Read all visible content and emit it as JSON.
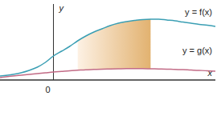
{
  "chart_data": {
    "type": "line",
    "x_label": "x",
    "y_label": "y",
    "x": [
      -3.3,
      -2.5,
      -2,
      -1.5,
      -1,
      -0.5,
      0,
      0.5,
      1,
      1.5,
      2,
      2.5,
      3,
      3.5,
      4,
      4.5,
      5,
      5.5,
      6,
      6.5,
      7,
      7.5,
      8,
      8.5,
      9,
      9.5,
      10
    ],
    "series": [
      {
        "name": "y = f(x)",
        "color": "#3b9fb4",
        "values": [
          0.25,
          0.35,
          0.45,
          0.6,
          0.8,
          1.1,
          1.5,
          1.8,
          2.1,
          2.45,
          2.75,
          3.0,
          3.2,
          3.4,
          3.55,
          3.65,
          3.72,
          3.78,
          3.8,
          3.8,
          3.75,
          3.7,
          3.62,
          3.55,
          3.48,
          3.42,
          3.35
        ]
      },
      {
        "name": "y = g(x)",
        "color": "#c26b86",
        "values": [
          0.15,
          0.25,
          0.3,
          0.35,
          0.4,
          0.45,
          0.5,
          0.54,
          0.58,
          0.61,
          0.64,
          0.66,
          0.68,
          0.69,
          0.7,
          0.71,
          0.71,
          0.71,
          0.7,
          0.69,
          0.68,
          0.66,
          0.65,
          0.62,
          0.6,
          0.58,
          0.55
        ]
      }
    ],
    "shade": [
      1.5,
      6
    ],
    "xlim": [
      -3.3,
      10
    ],
    "ylim": [
      0,
      4.75
    ],
    "xticks": [
      0
    ],
    "yticks": [],
    "tick_labels": "x",
    "grid": false
  }
}
